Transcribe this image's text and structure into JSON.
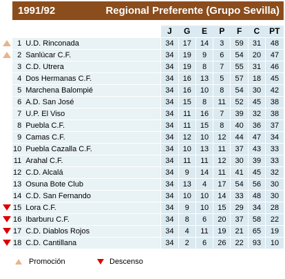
{
  "header": {
    "season": "1991/92",
    "league": "Regional Preferente (Grupo Sevilla)"
  },
  "columns": [
    "J",
    "G",
    "E",
    "P",
    "F",
    "C",
    "PT"
  ],
  "rows": [
    {
      "pos": "1",
      "team": "U.D. Rinconada",
      "J": "34",
      "G": "17",
      "E": "14",
      "P": "3",
      "F": "59",
      "C": "31",
      "PT": "48",
      "marker": "up"
    },
    {
      "pos": "2",
      "team": "Sanlúcar C.F.",
      "J": "34",
      "G": "19",
      "E": "9",
      "P": "6",
      "F": "54",
      "C": "20",
      "PT": "47",
      "marker": "up"
    },
    {
      "pos": "3",
      "team": "C.D. Utrera",
      "J": "34",
      "G": "19",
      "E": "8",
      "P": "7",
      "F": "55",
      "C": "31",
      "PT": "46",
      "marker": ""
    },
    {
      "pos": "4",
      "team": "Dos Hermanas C.F.",
      "J": "34",
      "G": "16",
      "E": "13",
      "P": "5",
      "F": "57",
      "C": "18",
      "PT": "45",
      "marker": ""
    },
    {
      "pos": "5",
      "team": "Marchena Balompié",
      "J": "34",
      "G": "16",
      "E": "10",
      "P": "8",
      "F": "54",
      "C": "30",
      "PT": "42",
      "marker": ""
    },
    {
      "pos": "6",
      "team": "A.D. San José",
      "J": "34",
      "G": "15",
      "E": "8",
      "P": "11",
      "F": "52",
      "C": "45",
      "PT": "38",
      "marker": ""
    },
    {
      "pos": "7",
      "team": "U.P. El Viso",
      "J": "34",
      "G": "11",
      "E": "16",
      "P": "7",
      "F": "39",
      "C": "32",
      "PT": "38",
      "marker": ""
    },
    {
      "pos": "8",
      "team": "Puebla C.F.",
      "J": "34",
      "G": "11",
      "E": "15",
      "P": "8",
      "F": "40",
      "C": "36",
      "PT": "37",
      "marker": ""
    },
    {
      "pos": "9",
      "team": "Camas C.F.",
      "J": "34",
      "G": "12",
      "E": "10",
      "P": "12",
      "F": "44",
      "C": "47",
      "PT": "34",
      "marker": ""
    },
    {
      "pos": "10",
      "team": "Puebla Cazalla C.F.",
      "J": "34",
      "G": "10",
      "E": "13",
      "P": "11",
      "F": "37",
      "C": "43",
      "PT": "33",
      "marker": ""
    },
    {
      "pos": "11",
      "team": "Arahal C.F.",
      "J": "34",
      "G": "11",
      "E": "11",
      "P": "12",
      "F": "30",
      "C": "39",
      "PT": "33",
      "marker": ""
    },
    {
      "pos": "12",
      "team": "C.D. Alcalá",
      "J": "34",
      "G": "9",
      "E": "14",
      "P": "11",
      "F": "41",
      "C": "45",
      "PT": "32",
      "marker": ""
    },
    {
      "pos": "13",
      "team": "Osuna Bote Club",
      "J": "34",
      "G": "13",
      "E": "4",
      "P": "17",
      "F": "54",
      "C": "56",
      "PT": "30",
      "marker": ""
    },
    {
      "pos": "14",
      "team": "C.D. San Fernando",
      "J": "34",
      "G": "10",
      "E": "10",
      "P": "14",
      "F": "33",
      "C": "48",
      "PT": "30",
      "marker": ""
    },
    {
      "pos": "15",
      "team": "Lora C.F.",
      "J": "34",
      "G": "9",
      "E": "10",
      "P": "15",
      "F": "29",
      "C": "34",
      "PT": "28",
      "marker": "down"
    },
    {
      "pos": "16",
      "team": "Ibarburu C.F.",
      "J": "34",
      "G": "8",
      "E": "6",
      "P": "20",
      "F": "37",
      "C": "58",
      "PT": "22",
      "marker": "down"
    },
    {
      "pos": "17",
      "team": "C.D. Diablos Rojos",
      "J": "34",
      "G": "4",
      "E": "11",
      "P": "19",
      "F": "21",
      "C": "65",
      "PT": "19",
      "marker": "down"
    },
    {
      "pos": "18",
      "team": "C.D. Cantillana",
      "J": "34",
      "G": "2",
      "E": "6",
      "P": "26",
      "F": "22",
      "C": "93",
      "PT": "10",
      "marker": "down"
    }
  ],
  "legend": {
    "promotion": "Promoción",
    "relegation": "Descenso"
  },
  "colors": {
    "header_bg": "#8b4d1c",
    "row_bg": "#e9f2f4",
    "stat_bg": "#dbeaf0",
    "promotion_marker": "#e8b48c",
    "relegation_marker": "#dd0000"
  }
}
